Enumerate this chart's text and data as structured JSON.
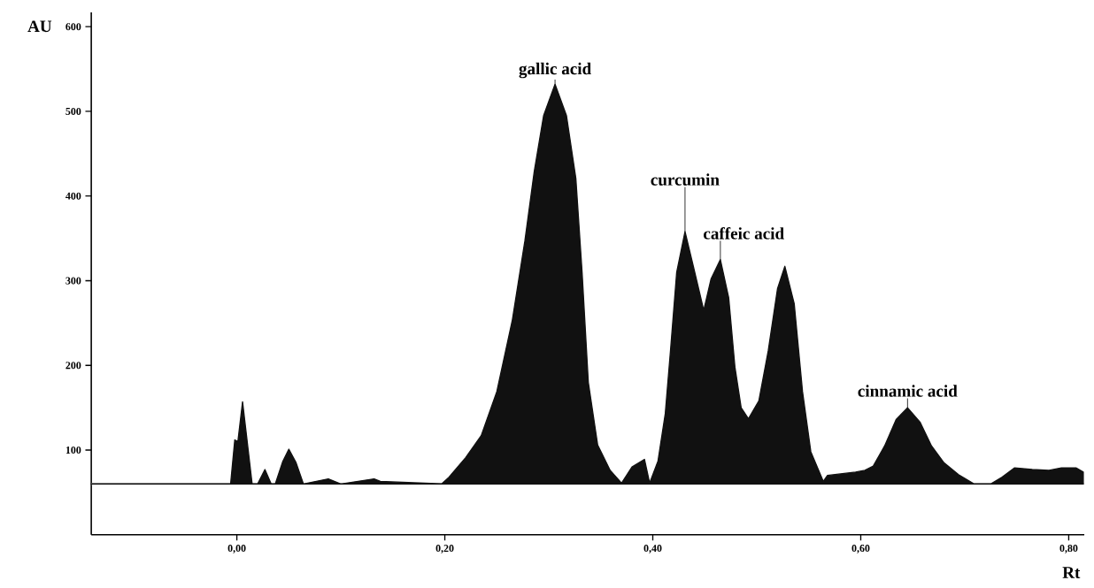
{
  "chart_data": {
    "type": "area",
    "xlabel": "Rt",
    "ylabel": "AU",
    "color": "#111111",
    "marker": "none",
    "x": [
      -0.14,
      -0.006,
      -0.002,
      0.001,
      0.0055,
      0.0147,
      0.02,
      0.027,
      0.033,
      0.037,
      0.044,
      0.05,
      0.057,
      0.064,
      0.088,
      0.1,
      0.132,
      0.138,
      0.197,
      0.204,
      0.22,
      0.235,
      0.25,
      0.265,
      0.277,
      0.286,
      0.295,
      0.306,
      0.317,
      0.326,
      0.332,
      0.338,
      0.347,
      0.359,
      0.37,
      0.38,
      0.392,
      0.397,
      0.405,
      0.412,
      0.417,
      0.423,
      0.431,
      0.439,
      0.449,
      0.456,
      0.465,
      0.473,
      0.479,
      0.485,
      0.492,
      0.502,
      0.511,
      0.52,
      0.527,
      0.536,
      0.544,
      0.552,
      0.564,
      0.568,
      0.595,
      0.604,
      0.612,
      0.623,
      0.634,
      0.645,
      0.657,
      0.668,
      0.68,
      0.694,
      0.709,
      0.716,
      0.725,
      0.736,
      0.748,
      0.765,
      0.781,
      0.793,
      0.807,
      0.814
    ],
    "values": [
      60,
      60,
      112,
      110,
      157,
      60,
      60,
      77,
      60,
      60,
      86,
      101,
      85,
      60,
      66,
      60,
      66,
      63,
      60,
      68,
      91,
      117,
      169,
      254,
      347,
      429,
      495,
      532,
      495,
      421,
      310,
      180,
      106,
      76,
      61,
      80,
      89,
      61,
      87,
      143,
      217,
      310,
      358,
      317,
      265,
      302,
      325,
      280,
      198,
      150,
      137,
      158,
      217,
      291,
      317,
      273,
      169,
      98,
      63,
      70,
      74,
      76,
      81,
      105,
      136,
      150,
      133,
      105,
      85,
      71,
      60,
      60,
      60,
      68,
      79,
      77,
      76,
      79,
      79,
      74
    ],
    "xlim": [
      -0.14,
      0.815
    ],
    "ylim": [
      0,
      617
    ],
    "xticks": [
      {
        "value": 0,
        "label": "0,00"
      },
      {
        "value": 0.2,
        "label": "0,20"
      },
      {
        "value": 0.4,
        "label": "0,40"
      },
      {
        "value": 0.6,
        "label": "0,60"
      },
      {
        "value": 0.8,
        "label": "0,80"
      }
    ],
    "yticks": [
      100,
      200,
      300,
      400,
      500,
      600
    ],
    "ref_lines": [
      {
        "axis": "y",
        "value": 60,
        "color": "#c0c0c0"
      }
    ],
    "annotations": [
      {
        "text": "gallic acid",
        "x": 0.306,
        "y": 532
      },
      {
        "text": "curcumin",
        "x": 0.431,
        "y": 358
      },
      {
        "text": "caffeic acid",
        "x": 0.465,
        "y": 325
      },
      {
        "text": "cinnamic acid",
        "x": 0.645,
        "y": 150
      }
    ]
  }
}
